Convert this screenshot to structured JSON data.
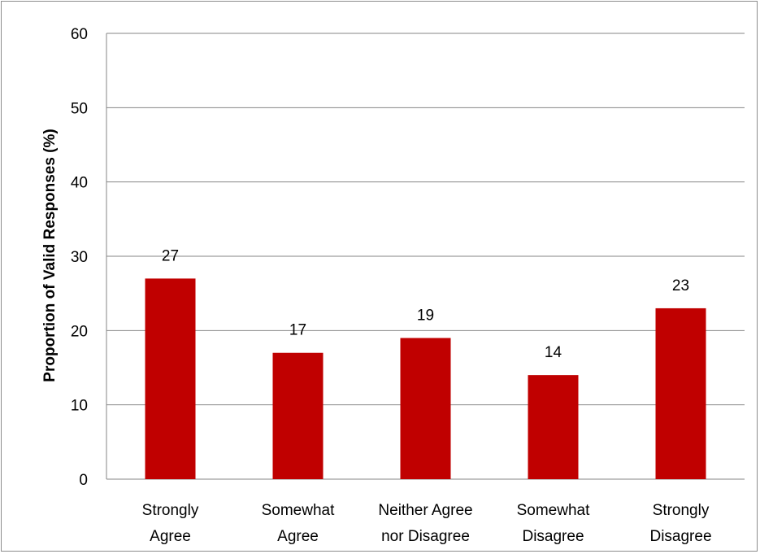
{
  "chart_data": {
    "type": "bar",
    "categories": [
      [
        "Strongly",
        "Agree"
      ],
      [
        "Somewhat",
        "Agree"
      ],
      [
        "Neither Agree",
        "nor Disagree"
      ],
      [
        "Somewhat",
        "Disagree"
      ],
      [
        "Strongly",
        "Disagree"
      ]
    ],
    "values": [
      27,
      17,
      19,
      14,
      23
    ],
    "data_labels": [
      "27",
      "17",
      "19",
      "14",
      "23"
    ],
    "title": "",
    "xlabel": "",
    "ylabel": "Proportion of Valid Responses (%)",
    "ylim": [
      0,
      60
    ],
    "yticks": [
      "0",
      "10",
      "20",
      "30",
      "40",
      "50",
      "60"
    ],
    "grid": true,
    "legend": "none",
    "bar_color": "#c00000",
    "grid_color": "#868686"
  }
}
